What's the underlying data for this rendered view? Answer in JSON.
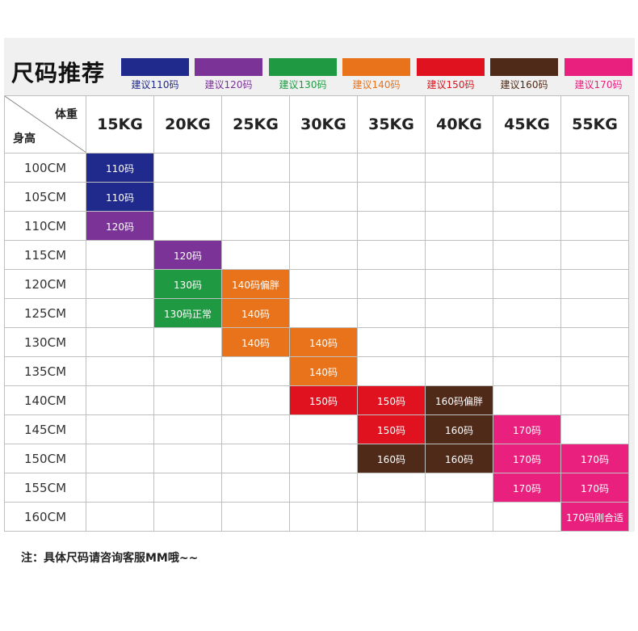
{
  "title": "尺码推荐",
  "legend": [
    {
      "label": "建议110码",
      "color": "#1f2a8c"
    },
    {
      "label": "建议120码",
      "color": "#7b3398"
    },
    {
      "label": "建议130码",
      "color": "#1f9a43"
    },
    {
      "label": "建议140码",
      "color": "#e8731a"
    },
    {
      "label": "建议150码",
      "color": "#e0121f"
    },
    {
      "label": "建议160码",
      "color": "#4f2a18"
    },
    {
      "label": "建议170码",
      "color": "#e9207e"
    }
  ],
  "corner": {
    "weight_label": "体重",
    "height_label": "身高"
  },
  "weights": [
    "15KG",
    "20KG",
    "25KG",
    "30KG",
    "35KG",
    "40KG",
    "45KG",
    "55KG"
  ],
  "rows": [
    {
      "height": "100CM",
      "cells": [
        [
          "110码",
          0
        ],
        null,
        null,
        null,
        null,
        null,
        null,
        null
      ]
    },
    {
      "height": "105CM",
      "cells": [
        [
          "110码",
          0
        ],
        null,
        null,
        null,
        null,
        null,
        null,
        null
      ]
    },
    {
      "height": "110CM",
      "cells": [
        [
          "120码",
          1
        ],
        null,
        null,
        null,
        null,
        null,
        null,
        null
      ]
    },
    {
      "height": "115CM",
      "cells": [
        null,
        [
          "120码",
          1
        ],
        null,
        null,
        null,
        null,
        null,
        null
      ]
    },
    {
      "height": "120CM",
      "cells": [
        null,
        [
          "130码",
          2
        ],
        [
          "140码偏胖",
          3
        ],
        null,
        null,
        null,
        null,
        null
      ]
    },
    {
      "height": "125CM",
      "cells": [
        null,
        [
          "130码正常",
          2
        ],
        [
          "140码",
          3
        ],
        null,
        null,
        null,
        null,
        null
      ]
    },
    {
      "height": "130CM",
      "cells": [
        null,
        null,
        [
          "140码",
          3
        ],
        [
          "140码",
          3
        ],
        null,
        null,
        null,
        null
      ]
    },
    {
      "height": "135CM",
      "cells": [
        null,
        null,
        null,
        [
          "140码",
          3
        ],
        null,
        null,
        null,
        null
      ]
    },
    {
      "height": "140CM",
      "cells": [
        null,
        null,
        null,
        [
          "150码",
          4
        ],
        [
          "150码",
          4
        ],
        [
          "160码偏胖",
          5
        ],
        null,
        null
      ]
    },
    {
      "height": "145CM",
      "cells": [
        null,
        null,
        null,
        null,
        [
          "150码",
          4
        ],
        [
          "160码",
          5
        ],
        [
          "170码",
          6
        ],
        null
      ]
    },
    {
      "height": "150CM",
      "cells": [
        null,
        null,
        null,
        null,
        [
          "160码",
          5
        ],
        [
          "160码",
          5
        ],
        [
          "170码",
          6
        ],
        [
          "170码",
          6
        ]
      ]
    },
    {
      "height": "155CM",
      "cells": [
        null,
        null,
        null,
        null,
        null,
        null,
        [
          "170码",
          6
        ],
        [
          "170码",
          6
        ]
      ]
    },
    {
      "height": "160CM",
      "cells": [
        null,
        null,
        null,
        null,
        null,
        null,
        null,
        [
          "170码刚合适",
          6
        ]
      ]
    }
  ],
  "note": "注：具体尺码请咨询客服MM哦~~"
}
